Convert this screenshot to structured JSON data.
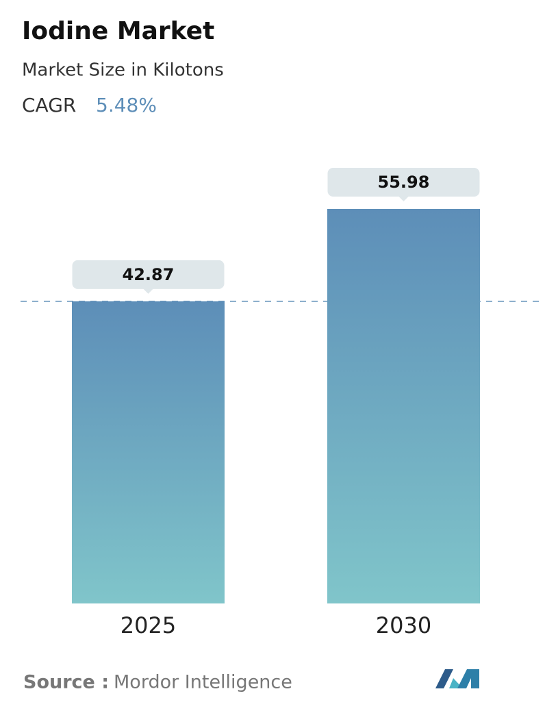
{
  "chart_data": {
    "type": "bar",
    "title": "Iodine Market",
    "subtitle": "Market Size in Kilotons",
    "cagr_label": "CAGR",
    "cagr_value": "5.48%",
    "categories": [
      "2025",
      "2030"
    ],
    "values": [
      42.87,
      55.98
    ],
    "gradient": [
      "#5d8eb8",
      "#80c5ca"
    ],
    "label_box_color": "#dfe7ea",
    "reference_line_color": "#5d8eb8",
    "source_label": "Source :",
    "source": "Mordor Intelligence"
  }
}
